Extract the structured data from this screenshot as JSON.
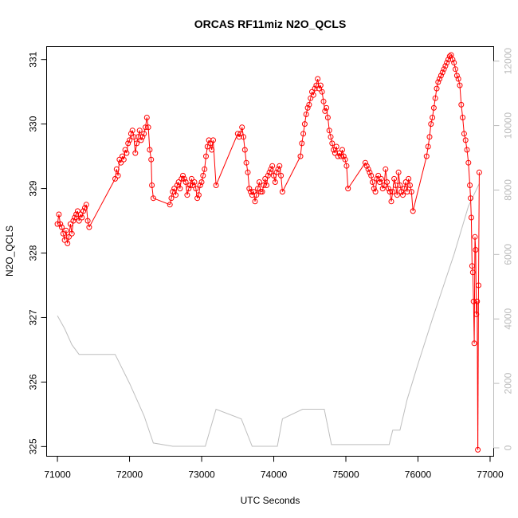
{
  "chart_data": {
    "type": "line",
    "title": "ORCAS RF11miz N2O_QCLS",
    "xlabel": "UTC Seconds",
    "ylabel": "N2O_QCLS",
    "xlim": [
      70850,
      77050
    ],
    "ylim": [
      324.85,
      331.2
    ],
    "y2lim": [
      -260,
      12450
    ],
    "x_ticks": [
      71000,
      72000,
      73000,
      74000,
      75000,
      76000,
      77000
    ],
    "y_ticks": [
      325,
      326,
      327,
      328,
      329,
      330,
      331
    ],
    "y2_ticks": [
      0,
      2000,
      4000,
      6000,
      8000,
      10000,
      12000
    ],
    "colors": {
      "n2o": "#ff0000",
      "altitude": "#bebebe"
    },
    "series": [
      {
        "values_xy": [
          [
            71000,
            328.45
          ],
          [
            71020,
            328.6
          ],
          [
            71040,
            328.45
          ],
          [
            71060,
            328.4
          ],
          [
            71080,
            328.3
          ],
          [
            71100,
            328.2
          ],
          [
            71120,
            328.35
          ],
          [
            71140,
            328.15
          ],
          [
            71160,
            328.25
          ],
          [
            71180,
            328.45
          ],
          [
            71200,
            328.3
          ],
          [
            71220,
            328.5
          ],
          [
            71240,
            328.55
          ],
          [
            71260,
            328.6
          ],
          [
            71280,
            328.65
          ],
          [
            71300,
            328.5
          ],
          [
            71320,
            328.6
          ],
          [
            71340,
            328.55
          ],
          [
            71360,
            328.65
          ],
          [
            71380,
            328.7
          ],
          [
            71400,
            328.75
          ],
          [
            71420,
            328.5
          ],
          [
            71440,
            328.4
          ],
          [
            71800,
            329.15
          ],
          [
            71820,
            329.3
          ],
          [
            71840,
            329.2
          ],
          [
            71860,
            329.45
          ],
          [
            71880,
            329.4
          ],
          [
            71900,
            329.5
          ],
          [
            71920,
            329.45
          ],
          [
            71940,
            329.6
          ],
          [
            71960,
            329.55
          ],
          [
            71980,
            329.7
          ],
          [
            72000,
            329.75
          ],
          [
            72020,
            329.85
          ],
          [
            72040,
            329.9
          ],
          [
            72060,
            329.8
          ],
          [
            72080,
            329.55
          ],
          [
            72100,
            329.7
          ],
          [
            72120,
            329.8
          ],
          [
            72140,
            329.9
          ],
          [
            72160,
            329.75
          ],
          [
            72180,
            329.8
          ],
          [
            72200,
            329.85
          ],
          [
            72220,
            329.95
          ],
          [
            72240,
            330.1
          ],
          [
            72260,
            329.95
          ],
          [
            72280,
            329.6
          ],
          [
            72300,
            329.45
          ],
          [
            72310,
            329.05
          ],
          [
            72330,
            328.85
          ],
          [
            72560,
            328.75
          ],
          [
            72580,
            328.85
          ],
          [
            72600,
            328.95
          ],
          [
            72620,
            329.0
          ],
          [
            72640,
            328.9
          ],
          [
            72660,
            329.05
          ],
          [
            72680,
            329.1
          ],
          [
            72700,
            329.0
          ],
          [
            72720,
            329.15
          ],
          [
            72740,
            329.2
          ],
          [
            72760,
            329.15
          ],
          [
            72780,
            329.1
          ],
          [
            72800,
            328.9
          ],
          [
            72820,
            329.0
          ],
          [
            72840,
            329.05
          ],
          [
            72860,
            329.15
          ],
          [
            72880,
            329.05
          ],
          [
            72900,
            329.1
          ],
          [
            72920,
            329.0
          ],
          [
            72940,
            328.85
          ],
          [
            72960,
            328.9
          ],
          [
            72980,
            329.05
          ],
          [
            73000,
            329.1
          ],
          [
            73020,
            329.2
          ],
          [
            73040,
            329.3
          ],
          [
            73060,
            329.5
          ],
          [
            73080,
            329.65
          ],
          [
            73100,
            329.75
          ],
          [
            73120,
            329.7
          ],
          [
            73140,
            329.6
          ],
          [
            73160,
            329.75
          ],
          [
            73200,
            329.05
          ],
          [
            73500,
            329.85
          ],
          [
            73520,
            329.8
          ],
          [
            73540,
            329.85
          ],
          [
            73560,
            329.95
          ],
          [
            73580,
            329.8
          ],
          [
            73600,
            329.6
          ],
          [
            73620,
            329.4
          ],
          [
            73640,
            329.25
          ],
          [
            73660,
            329.0
          ],
          [
            73680,
            328.95
          ],
          [
            73700,
            328.9
          ],
          [
            73720,
            328.95
          ],
          [
            73740,
            328.8
          ],
          [
            73760,
            328.9
          ],
          [
            73780,
            329.0
          ],
          [
            73800,
            329.1
          ],
          [
            73820,
            328.95
          ],
          [
            73840,
            328.95
          ],
          [
            73860,
            329.05
          ],
          [
            73880,
            329.15
          ],
          [
            73900,
            329.05
          ],
          [
            73920,
            329.2
          ],
          [
            73940,
            329.25
          ],
          [
            73960,
            329.3
          ],
          [
            73980,
            329.35
          ],
          [
            74000,
            329.2
          ],
          [
            74020,
            329.1
          ],
          [
            74040,
            329.25
          ],
          [
            74060,
            329.3
          ],
          [
            74080,
            329.35
          ],
          [
            74100,
            329.2
          ],
          [
            74120,
            328.95
          ],
          [
            74370,
            329.5
          ],
          [
            74390,
            329.7
          ],
          [
            74410,
            329.85
          ],
          [
            74430,
            330.0
          ],
          [
            74450,
            330.15
          ],
          [
            74470,
            330.25
          ],
          [
            74490,
            330.3
          ],
          [
            74510,
            330.4
          ],
          [
            74530,
            330.5
          ],
          [
            74550,
            330.45
          ],
          [
            74570,
            330.55
          ],
          [
            74590,
            330.6
          ],
          [
            74610,
            330.7
          ],
          [
            74630,
            330.55
          ],
          [
            74650,
            330.6
          ],
          [
            74670,
            330.5
          ],
          [
            74690,
            330.35
          ],
          [
            74710,
            330.2
          ],
          [
            74730,
            330.25
          ],
          [
            74750,
            330.1
          ],
          [
            74770,
            329.9
          ],
          [
            74790,
            329.8
          ],
          [
            74810,
            329.7
          ],
          [
            74830,
            329.6
          ],
          [
            74850,
            329.55
          ],
          [
            74870,
            329.65
          ],
          [
            74890,
            329.5
          ],
          [
            74910,
            329.55
          ],
          [
            74930,
            329.5
          ],
          [
            74950,
            329.6
          ],
          [
            74970,
            329.5
          ],
          [
            74990,
            329.45
          ],
          [
            75010,
            329.35
          ],
          [
            75030,
            329.0
          ],
          [
            75270,
            329.4
          ],
          [
            75290,
            329.35
          ],
          [
            75310,
            329.3
          ],
          [
            75330,
            329.25
          ],
          [
            75350,
            329.2
          ],
          [
            75370,
            329.1
          ],
          [
            75390,
            329.0
          ],
          [
            75410,
            328.95
          ],
          [
            75430,
            329.15
          ],
          [
            75450,
            329.2
          ],
          [
            75470,
            329.1
          ],
          [
            75490,
            329.15
          ],
          [
            75510,
            329.0
          ],
          [
            75530,
            329.05
          ],
          [
            75550,
            329.3
          ],
          [
            75570,
            329.1
          ],
          [
            75590,
            329.0
          ],
          [
            75610,
            328.95
          ],
          [
            75630,
            328.8
          ],
          [
            75650,
            328.95
          ],
          [
            75670,
            329.15
          ],
          [
            75690,
            329.05
          ],
          [
            75710,
            328.9
          ],
          [
            75730,
            329.25
          ],
          [
            75750,
            329.05
          ],
          [
            75770,
            328.95
          ],
          [
            75790,
            328.9
          ],
          [
            75810,
            329.0
          ],
          [
            75830,
            329.1
          ],
          [
            75850,
            328.95
          ],
          [
            75870,
            329.15
          ],
          [
            75890,
            329.05
          ],
          [
            75910,
            328.95
          ],
          [
            75930,
            328.65
          ],
          [
            76120,
            329.5
          ],
          [
            76140,
            329.65
          ],
          [
            76160,
            329.8
          ],
          [
            76180,
            330.0
          ],
          [
            76200,
            330.1
          ],
          [
            76220,
            330.25
          ],
          [
            76240,
            330.4
          ],
          [
            76260,
            330.55
          ],
          [
            76280,
            330.65
          ],
          [
            76300,
            330.7
          ],
          [
            76320,
            330.75
          ],
          [
            76340,
            330.8
          ],
          [
            76360,
            330.85
          ],
          [
            76380,
            330.9
          ],
          [
            76400,
            330.95
          ],
          [
            76420,
            331.0
          ],
          [
            76440,
            331.05
          ],
          [
            76460,
            331.07
          ],
          [
            76480,
            331.0
          ],
          [
            76500,
            330.95
          ],
          [
            76520,
            330.85
          ],
          [
            76540,
            330.75
          ],
          [
            76560,
            330.7
          ],
          [
            76580,
            330.6
          ],
          [
            76600,
            330.3
          ],
          [
            76620,
            330.1
          ],
          [
            76640,
            329.85
          ],
          [
            76660,
            329.75
          ],
          [
            76680,
            329.6
          ],
          [
            76700,
            329.4
          ],
          [
            76720,
            329.05
          ],
          [
            76730,
            328.85
          ],
          [
            76740,
            328.55
          ],
          [
            76750,
            327.8
          ],
          [
            76760,
            327.7
          ],
          [
            76770,
            327.25
          ],
          [
            76780,
            326.6
          ],
          [
            76790,
            328.25
          ],
          [
            76800,
            328.05
          ],
          [
            76810,
            327.05
          ],
          [
            76820,
            327.25
          ],
          [
            76830,
            324.95
          ],
          [
            76840,
            327.5
          ],
          [
            76850,
            329.25
          ]
        ]
      },
      {
        "axis": "right",
        "values_xy": [
          [
            71000,
            4100
          ],
          [
            71100,
            3700
          ],
          [
            71200,
            3200
          ],
          [
            71300,
            2900
          ],
          [
            71800,
            2900
          ],
          [
            72000,
            2000
          ],
          [
            72200,
            1000
          ],
          [
            72330,
            150
          ],
          [
            72600,
            50
          ],
          [
            73050,
            50
          ],
          [
            73200,
            1200
          ],
          [
            73550,
            900
          ],
          [
            73700,
            50
          ],
          [
            74050,
            50
          ],
          [
            74120,
            900
          ],
          [
            74400,
            1200
          ],
          [
            74700,
            1200
          ],
          [
            74800,
            100
          ],
          [
            75600,
            100
          ],
          [
            75650,
            550
          ],
          [
            75750,
            550
          ],
          [
            75850,
            1500
          ],
          [
            76000,
            2600
          ],
          [
            76200,
            4000
          ],
          [
            76500,
            6000
          ],
          [
            76700,
            7500
          ],
          [
            76850,
            8200
          ]
        ]
      }
    ]
  }
}
